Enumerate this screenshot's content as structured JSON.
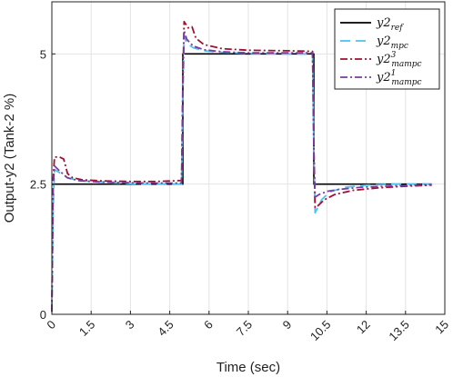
{
  "chart_data": {
    "type": "line",
    "title": "",
    "xlabel": "Time (sec)",
    "ylabel": "Output-y2 (Tank-2 %)",
    "xlim": [
      0,
      15
    ],
    "ylim": [
      0,
      6
    ],
    "x_ticks": [
      0,
      1.5,
      3,
      4.5,
      6,
      7.5,
      9,
      10.5,
      12,
      13.5,
      15
    ],
    "x_tick_labels": [
      "0",
      "1.5",
      "3",
      "4.5",
      "6",
      "7.5",
      "9",
      "10.5",
      "12",
      "13.5",
      "15"
    ],
    "y_ticks": [
      0,
      2.5,
      5
    ],
    "y_tick_labels": [
      "0",
      "2.5",
      "5"
    ],
    "grid": true,
    "legend_position": "top-right",
    "series": [
      {
        "name": "y2_ref",
        "color": "#000000",
        "dash": "solid",
        "x": [
          0,
          5,
          5,
          10,
          10,
          14.5
        ],
        "y": [
          2.5,
          2.5,
          5,
          5,
          2.5,
          2.5
        ]
      },
      {
        "name": "y2_mpc",
        "color": "#4cc3f0",
        "dash": "long-dash",
        "x": [
          0,
          0.05,
          0.1,
          0.3,
          0.6,
          1,
          1.5,
          2.5,
          3.5,
          4.5,
          4.95,
          5.0,
          5.05,
          5.15,
          5.4,
          5.8,
          6.5,
          7.5,
          9,
          9.95,
          10.0,
          10.05,
          10.15,
          10.3,
          10.6,
          11.2,
          12,
          13,
          14.5
        ],
        "y": [
          0.05,
          2.0,
          2.78,
          2.72,
          2.62,
          2.57,
          2.55,
          2.52,
          2.5,
          2.5,
          2.5,
          4.2,
          5.35,
          5.2,
          5.12,
          5.06,
          5.03,
          5.01,
          5.0,
          5.0,
          3.2,
          1.95,
          2.05,
          2.2,
          2.35,
          2.44,
          2.48,
          2.5,
          2.5
        ]
      },
      {
        "name": "y2_mampc^3",
        "color": "#a01030",
        "dash": "dash-dot",
        "x": [
          0,
          0.05,
          0.1,
          0.3,
          0.45,
          0.6,
          0.8,
          1.2,
          2,
          3,
          4,
          4.95,
          5.0,
          5.05,
          5.2,
          5.35,
          5.5,
          5.8,
          6.5,
          7.5,
          9,
          9.95,
          10.0,
          10.05,
          10.15,
          10.4,
          10.8,
          11.5,
          12.5,
          13.5,
          14.5
        ],
        "y": [
          0.05,
          2.6,
          3.02,
          3.02,
          2.98,
          2.7,
          2.62,
          2.58,
          2.56,
          2.55,
          2.55,
          2.57,
          4.5,
          5.62,
          5.5,
          5.52,
          5.3,
          5.18,
          5.1,
          5.07,
          5.06,
          5.05,
          3.2,
          2.05,
          2.08,
          2.2,
          2.3,
          2.38,
          2.43,
          2.46,
          2.48
        ]
      },
      {
        "name": "y2_mampc^1",
        "color": "#7a3aa0",
        "dash": "dash-dot",
        "x": [
          0,
          0.05,
          0.1,
          0.3,
          0.6,
          1,
          1.5,
          2.5,
          3.5,
          4.5,
          4.95,
          5.0,
          5.05,
          5.15,
          5.4,
          5.8,
          6.5,
          7.5,
          9,
          9.95,
          10.0,
          10.05,
          10.2,
          10.5,
          11,
          11.8,
          12.8,
          13.8,
          14.5
        ],
        "y": [
          0.05,
          2.4,
          2.85,
          2.75,
          2.62,
          2.57,
          2.55,
          2.53,
          2.52,
          2.52,
          2.52,
          4.3,
          5.45,
          5.28,
          5.15,
          5.08,
          5.04,
          5.02,
          5.02,
          5.02,
          3.2,
          2.25,
          2.3,
          2.36,
          2.4,
          2.44,
          2.46,
          2.48,
          2.49
        ]
      }
    ]
  },
  "legend": {
    "entries": [
      {
        "base": "y2",
        "sub": "ref",
        "sup": ""
      },
      {
        "base": "y2",
        "sub": "mpc",
        "sup": ""
      },
      {
        "base": "y2",
        "sub": "mampc",
        "sup": "3"
      },
      {
        "base": "y2",
        "sub": "mampc",
        "sup": "1"
      }
    ]
  }
}
